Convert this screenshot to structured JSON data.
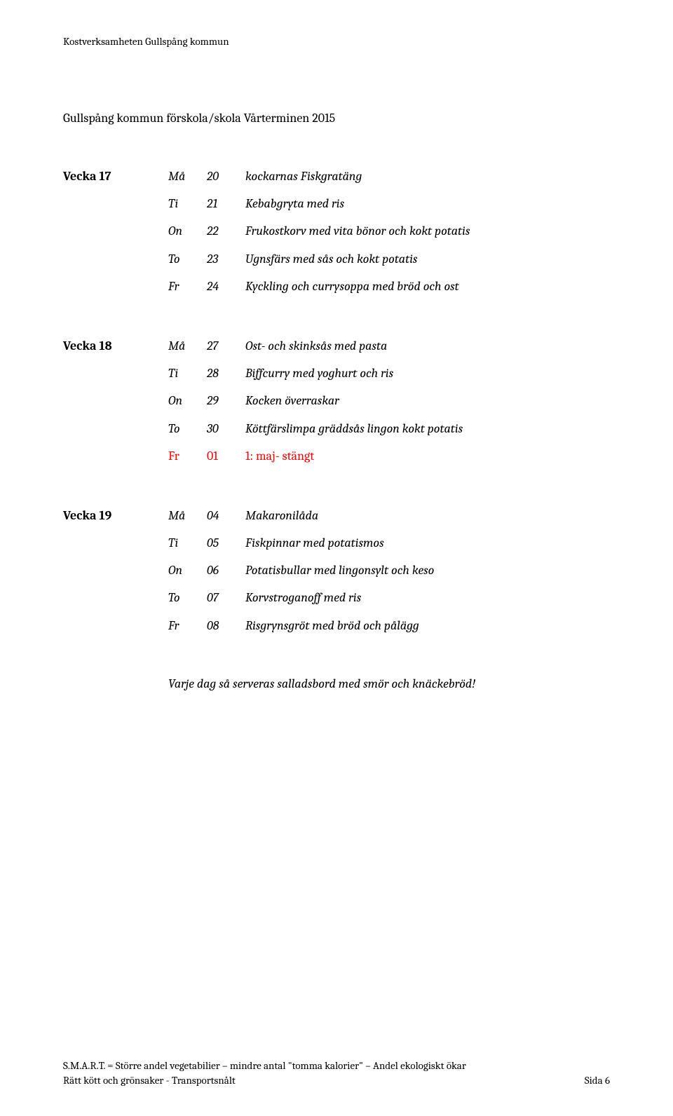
{
  "header": "Kostverksamheten Gullspång kommun",
  "subtitle": "Gullspång kommun förskola/skola Vårterminen 2015",
  "weeks": [
    {
      "label": "Vecka 17",
      "rows": [
        {
          "day": "Må",
          "num": "20",
          "dish": "kockarnas Fiskgratäng",
          "red": false
        },
        {
          "day": "Ti",
          "num": "21",
          "dish": "Kebabgryta med ris",
          "red": false
        },
        {
          "day": "On",
          "num": "22",
          "dish": "Frukostkorv med vita bönor och kokt potatis",
          "red": false
        },
        {
          "day": "To",
          "num": "23",
          "dish": "Ugnsfärs med sås och kokt potatis",
          "red": false
        },
        {
          "day": "Fr",
          "num": "24",
          "dish": "Kyckling och currysoppa med bröd och ost",
          "red": false
        }
      ]
    },
    {
      "label": "Vecka 18",
      "rows": [
        {
          "day": "Må",
          "num": "27",
          "dish": "Ost- och skinksås med pasta",
          "red": false
        },
        {
          "day": "Ti",
          "num": "28",
          "dish": "Biffcurry med yoghurt och ris",
          "red": false
        },
        {
          "day": "On",
          "num": "29",
          "dish": "Kocken överraskar",
          "red": false
        },
        {
          "day": "To",
          "num": "30",
          "dish": "Köttfärslimpa gräddsås lingon kokt potatis",
          "red": false
        },
        {
          "day": "Fr",
          "num": "01",
          "dish": "1: maj- stängt",
          "red": true
        }
      ]
    },
    {
      "label": "Vecka 19",
      "rows": [
        {
          "day": "Må",
          "num": "04",
          "dish": "Makaronilåda",
          "red": false
        },
        {
          "day": "Ti",
          "num": "05",
          "dish": "Fiskpinnar med potatismos",
          "red": false
        },
        {
          "day": "On",
          "num": "06",
          "dish": "Potatisbullar med lingonsylt och keso",
          "red": false
        },
        {
          "day": "To",
          "num": "07",
          "dish": "Korvstroganoff med ris",
          "red": false
        },
        {
          "day": "Fr",
          "num": "08",
          "dish": "Risgrynsgröt med bröd och pålägg",
          "red": false
        }
      ]
    }
  ],
  "serving_note": "Varje dag så serveras salladsbord med smör och knäckebröd!",
  "footer": {
    "line1": "S.M.A.R.T. = Större andel vegetabilier – mindre antal \"tomma kalorier\" – Andel ekologiskt ökar",
    "line2": "Rätt kött och grönsaker - Transportsnålt",
    "page": "Sida 6"
  }
}
